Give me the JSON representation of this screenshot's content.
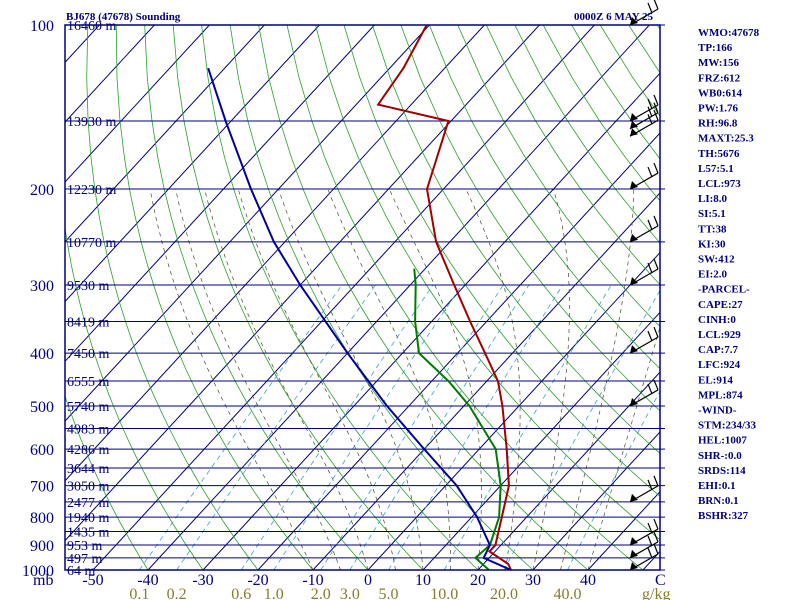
{
  "chart_data": {
    "type": "line",
    "title_left": "BJ678 (47678) Sounding",
    "title_right": "0000Z  6 MAY 25",
    "axis_bottom_left_label": "mb",
    "x_axis_unit_label": "C",
    "mixing_ratio_unit_label": "g/kg",
    "pressure_ticks": [
      "100",
      "200",
      "300",
      "400",
      "500",
      "600",
      "700",
      "800",
      "900",
      "1000"
    ],
    "temperature_ticks": [
      "-50",
      "-40",
      "-30",
      "-20",
      "-10",
      "0",
      "10",
      "20",
      "30",
      "40"
    ],
    "mixing_ratio_ticks": [
      "0.1",
      "0.2",
      "0.6",
      "1.0",
      "2.0",
      "3.0",
      "5.0",
      "10.0",
      "20.0",
      "40.0"
    ],
    "height_labels": [
      {
        "p": 100,
        "text": "16460 m"
      },
      {
        "p": 150,
        "text": "13930 m"
      },
      {
        "p": 200,
        "text": "12230 m"
      },
      {
        "p": 250,
        "text": "10770 m"
      },
      {
        "p": 300,
        "text": "9530 m"
      },
      {
        "p": 350,
        "text": "8419 m"
      },
      {
        "p": 400,
        "text": "7450 m"
      },
      {
        "p": 450,
        "text": "6555 m"
      },
      {
        "p": 500,
        "text": "5740 m"
      },
      {
        "p": 550,
        "text": "4983 m"
      },
      {
        "p": 600,
        "text": "4286 m"
      },
      {
        "p": 650,
        "text": "3644 m"
      },
      {
        "p": 700,
        "text": "3050 m"
      },
      {
        "p": 750,
        "text": "2477 m"
      },
      {
        "p": 800,
        "text": "1940 m"
      },
      {
        "p": 850,
        "text": "1435 m"
      },
      {
        "p": 900,
        "text": "953 m"
      },
      {
        "p": 950,
        "text": "497 m"
      },
      {
        "p": 1000,
        "text": "64 m"
      }
    ],
    "series": [
      {
        "color": "#a00000",
        "points": [
          {
            "p": 100,
            "t": -80.5
          },
          {
            "p": 120,
            "t": -77.5
          },
          {
            "p": 140,
            "t": -76
          },
          {
            "p": 150,
            "t": -60.5
          },
          {
            "p": 200,
            "t": -53
          },
          {
            "p": 250,
            "t": -42.5
          },
          {
            "p": 300,
            "t": -32
          },
          {
            "p": 350,
            "t": -23
          },
          {
            "p": 400,
            "t": -15
          },
          {
            "p": 450,
            "t": -8
          },
          {
            "p": 500,
            "t": -3
          },
          {
            "p": 600,
            "t": 5
          },
          {
            "p": 700,
            "t": 11.5
          },
          {
            "p": 800,
            "t": 15.5
          },
          {
            "p": 900,
            "t": 19
          },
          {
            "p": 925,
            "t": 19
          },
          {
            "p": 975,
            "t": 24.5
          },
          {
            "p": 1000,
            "t": 26
          }
        ]
      },
      {
        "color": "#007a00",
        "points": [
          {
            "p": 280,
            "t": -42
          },
          {
            "p": 300,
            "t": -39
          },
          {
            "p": 350,
            "t": -33
          },
          {
            "p": 400,
            "t": -27
          },
          {
            "p": 450,
            "t": -17
          },
          {
            "p": 500,
            "t": -9
          },
          {
            "p": 600,
            "t": 3
          },
          {
            "p": 700,
            "t": 10
          },
          {
            "p": 800,
            "t": 15
          },
          {
            "p": 900,
            "t": 18
          },
          {
            "p": 950,
            "t": 17.5
          },
          {
            "p": 1000,
            "t": 22
          }
        ]
      },
      {
        "color": "#00009a",
        "points": [
          {
            "p": 120,
            "t": -113
          },
          {
            "p": 150,
            "t": -101
          },
          {
            "p": 200,
            "t": -85
          },
          {
            "p": 250,
            "t": -72
          },
          {
            "p": 300,
            "t": -60
          },
          {
            "p": 400,
            "t": -40
          },
          {
            "p": 500,
            "t": -24
          },
          {
            "p": 600,
            "t": -10
          },
          {
            "p": 700,
            "t": 2
          },
          {
            "p": 800,
            "t": 11
          },
          {
            "p": 900,
            "t": 18
          },
          {
            "p": 950,
            "t": 19
          },
          {
            "p": 1000,
            "t": 26
          }
        ]
      }
    ],
    "wind_barbs": [
      {
        "p": 100
      },
      {
        "p": 150
      },
      {
        "p": 155
      },
      {
        "p": 160
      },
      {
        "p": 200
      },
      {
        "p": 250
      },
      {
        "p": 300
      },
      {
        "p": 400
      },
      {
        "p": 500
      },
      {
        "p": 750
      },
      {
        "p": 900
      },
      {
        "p": 950
      },
      {
        "p": 1000
      }
    ]
  },
  "side_panel": [
    "WMO:47678",
    "TP:166",
    "MW:156",
    "FRZ:612",
    "WB0:614",
    "PW:1.76",
    "RH:96.8",
    "MAXT:25.3",
    "TH:5676",
    "L57:5.1",
    "LCL:973",
    "LI:8.0",
    "SI:5.1",
    "TT:38",
    "KI:30",
    "SW:412",
    "EI:2.0",
    "-PARCEL-",
    "CAPE:27",
    "CINH:0",
    "LCL:929",
    "CAP:7.7",
    "LFC:924",
    "EL:914",
    "MPL:874",
    "-WIND-",
    "STM:234/33",
    "HEL:1007",
    "SHR-:0.0",
    "SRDS:114",
    "EHI:0.1",
    "BRN:0.1",
    "BSHR:327"
  ]
}
